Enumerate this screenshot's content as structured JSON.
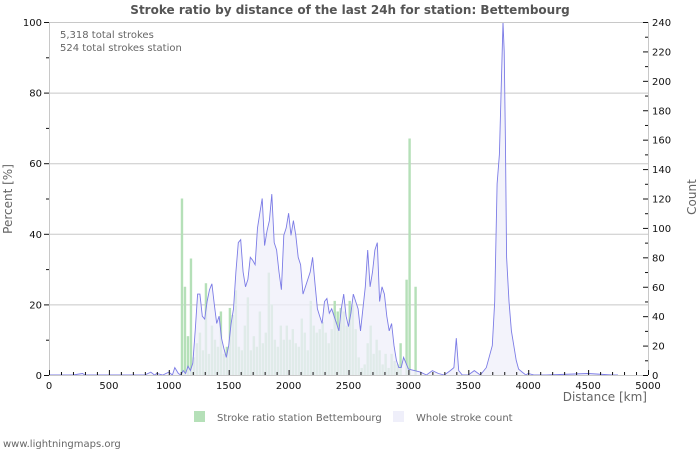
{
  "chart_data": {
    "type": "bar+area",
    "title": "Stroke ratio by distance of the last 24h for station: Bettembourg",
    "xlabel": "Distance   [km]",
    "ylabel_left": "Percent   [%]",
    "ylabel_right": "Count",
    "xlim": [
      0,
      5000
    ],
    "ylim_left": [
      0,
      100
    ],
    "ylim_right": [
      0,
      240
    ],
    "x_ticks": [
      0,
      500,
      1000,
      1500,
      2000,
      2500,
      3000,
      3500,
      4000,
      4500,
      5000
    ],
    "y_left_ticks": [
      0,
      20,
      40,
      60,
      80,
      100
    ],
    "y_right_ticks": [
      0,
      20,
      40,
      60,
      80,
      100,
      120,
      140,
      160,
      180,
      200,
      220,
      240
    ],
    "grid": true,
    "legend_position": "bottom",
    "annotations": [
      "5,318 total strokes",
      "524 total strokes station"
    ],
    "series": [
      {
        "name": "Stroke ratio station Bettembourg",
        "type": "bar",
        "axis": "left",
        "color": "#b5e0b8",
        "x_km": [
          1100,
          1125,
          1150,
          1175,
          1200,
          1225,
          1250,
          1275,
          1300,
          1325,
          1350,
          1375,
          1400,
          1425,
          1450,
          1475,
          1500,
          1525,
          1550,
          1575,
          1600,
          1625,
          1650,
          1675,
          1700,
          1725,
          1750,
          1775,
          1800,
          1825,
          1850,
          1875,
          1900,
          1925,
          1950,
          1975,
          2000,
          2025,
          2050,
          2075,
          2100,
          2125,
          2150,
          2175,
          2200,
          2225,
          2250,
          2275,
          2300,
          2325,
          2350,
          2375,
          2400,
          2425,
          2450,
          2475,
          2500,
          2525,
          2550,
          2575,
          2600,
          2625,
          2650,
          2675,
          2700,
          2725,
          2750,
          2775,
          2800,
          2825,
          2850,
          2875,
          2900,
          2925,
          2950,
          2975,
          3000,
          3025,
          3050,
          3075
        ],
        "values": [
          50,
          25,
          11,
          33,
          5,
          9,
          12,
          7,
          26,
          6,
          14,
          10,
          8,
          18,
          6,
          8,
          19,
          17,
          24,
          8,
          7,
          14,
          22,
          7,
          11,
          8,
          18,
          9,
          12,
          29,
          20,
          10,
          8,
          14,
          10,
          14,
          10,
          13,
          9,
          8,
          16,
          12,
          7,
          21,
          14,
          12,
          13,
          15,
          12,
          9,
          13,
          21,
          18,
          19,
          18,
          14,
          21,
          20,
          13,
          5,
          2,
          3,
          9,
          14,
          6,
          10,
          7,
          3,
          6,
          2,
          6,
          4,
          3,
          9,
          0,
          27,
          67,
          0,
          25,
          0
        ]
      },
      {
        "name": "Whole stroke count",
        "type": "area",
        "axis": "right",
        "color": "#7c7ce6",
        "fill": "#efeffa",
        "x_km": [
          0,
          200,
          280,
          300,
          400,
          500,
          600,
          700,
          800,
          850,
          880,
          900,
          950,
          1000,
          1030,
          1050,
          1080,
          1100,
          1120,
          1140,
          1160,
          1180,
          1200,
          1220,
          1240,
          1260,
          1280,
          1300,
          1320,
          1340,
          1360,
          1380,
          1400,
          1420,
          1440,
          1460,
          1480,
          1500,
          1520,
          1540,
          1560,
          1580,
          1600,
          1620,
          1640,
          1660,
          1680,
          1700,
          1720,
          1740,
          1760,
          1780,
          1800,
          1820,
          1840,
          1860,
          1880,
          1900,
          1920,
          1940,
          1960,
          1980,
          2000,
          2020,
          2040,
          2060,
          2080,
          2100,
          2120,
          2140,
          2160,
          2180,
          2200,
          2220,
          2240,
          2260,
          2280,
          2300,
          2320,
          2340,
          2360,
          2380,
          2400,
          2420,
          2440,
          2460,
          2480,
          2500,
          2520,
          2540,
          2560,
          2580,
          2600,
          2620,
          2640,
          2660,
          2680,
          2700,
          2720,
          2740,
          2760,
          2780,
          2800,
          2820,
          2840,
          2860,
          2880,
          2900,
          2920,
          2940,
          2960,
          2980,
          3000,
          3050,
          3100,
          3150,
          3200,
          3250,
          3300,
          3350,
          3380,
          3400,
          3420,
          3450,
          3500,
          3550,
          3600,
          3650,
          3700,
          3720,
          3740,
          3760,
          3780,
          3790,
          3800,
          3810,
          3820,
          3840,
          3860,
          3880,
          3900,
          3920,
          3950,
          3980,
          4000,
          4050,
          4100,
          4150,
          4500,
          4700,
          4750,
          4800,
          5000
        ],
        "values": [
          0,
          0,
          1,
          0,
          0,
          0,
          0,
          0,
          0,
          2,
          0,
          1,
          0,
          2,
          0,
          5,
          1,
          0,
          3,
          1,
          6,
          3,
          8,
          30,
          55,
          55,
          40,
          38,
          50,
          58,
          62,
          48,
          35,
          40,
          25,
          18,
          12,
          20,
          35,
          45,
          70,
          90,
          92,
          70,
          60,
          65,
          80,
          78,
          75,
          100,
          110,
          120,
          88,
          98,
          105,
          123,
          90,
          85,
          70,
          58,
          95,
          100,
          110,
          95,
          105,
          95,
          80,
          75,
          55,
          60,
          65,
          70,
          80,
          62,
          45,
          40,
          35,
          50,
          52,
          42,
          45,
          40,
          35,
          30,
          45,
          55,
          40,
          33,
          42,
          55,
          50,
          45,
          30,
          45,
          60,
          85,
          60,
          70,
          85,
          90,
          50,
          60,
          55,
          40,
          30,
          35,
          20,
          10,
          5,
          5,
          12,
          8,
          4,
          3,
          2,
          0,
          3,
          1,
          0,
          3,
          5,
          25,
          3,
          0,
          0,
          3,
          0,
          5,
          20,
          50,
          130,
          150,
          210,
          240,
          220,
          160,
          80,
          50,
          30,
          20,
          10,
          4,
          2,
          0,
          1,
          0,
          0,
          0,
          1,
          0,
          0
        ]
      }
    ]
  },
  "info": {
    "total_strokes": "5,318 total strokes",
    "total_strokes_station": "524 total strokes station"
  },
  "legend": {
    "items": [
      {
        "label": "Stroke ratio station Bettembourg",
        "color": "#b5e0b8"
      },
      {
        "label": "Whole stroke count",
        "color": "#efeffa"
      }
    ]
  },
  "footer": {
    "credit": "www.lightningmaps.org"
  }
}
